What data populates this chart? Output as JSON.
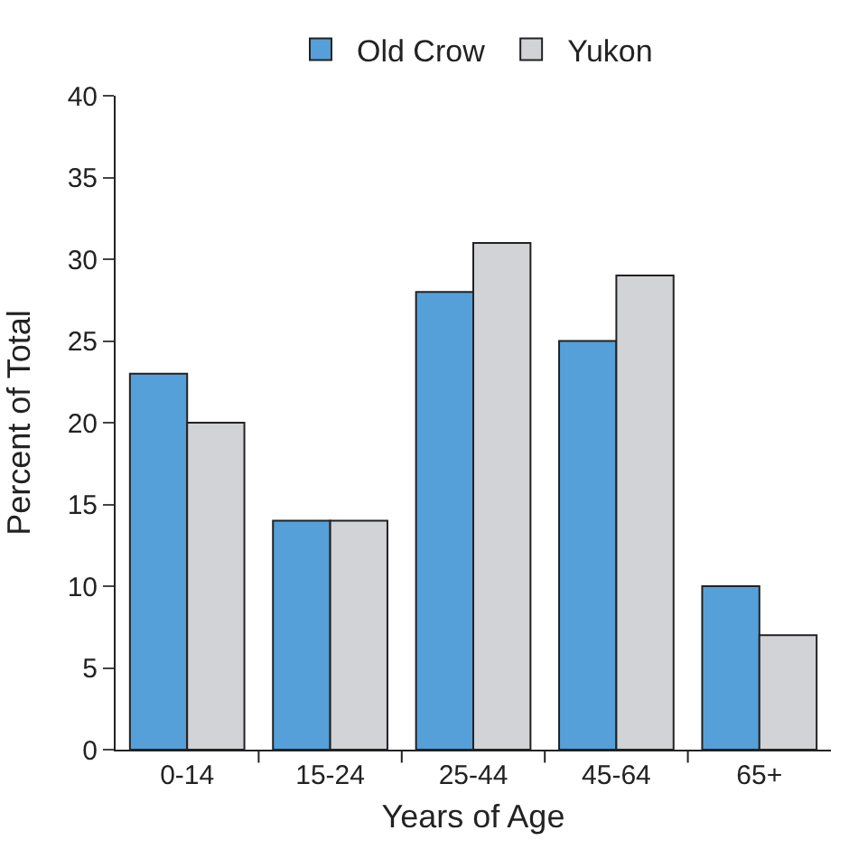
{
  "chart_data": {
    "type": "bar",
    "xlabel": "Years of Age",
    "ylabel": "Percent of Total",
    "categories": [
      "0-14",
      "15-24",
      "25-44",
      "45-64",
      "65+"
    ],
    "series": [
      {
        "name": "Old Crow",
        "color": "#55a0d9",
        "values": [
          23,
          14,
          28,
          25,
          10
        ]
      },
      {
        "name": "Yukon",
        "color": "#d2d3d6",
        "values": [
          20,
          14,
          31,
          29,
          7
        ]
      }
    ],
    "ylim": [
      0,
      40
    ],
    "yticks": [
      0,
      5,
      10,
      15,
      20,
      25,
      30,
      35,
      40
    ],
    "legend": "top"
  }
}
